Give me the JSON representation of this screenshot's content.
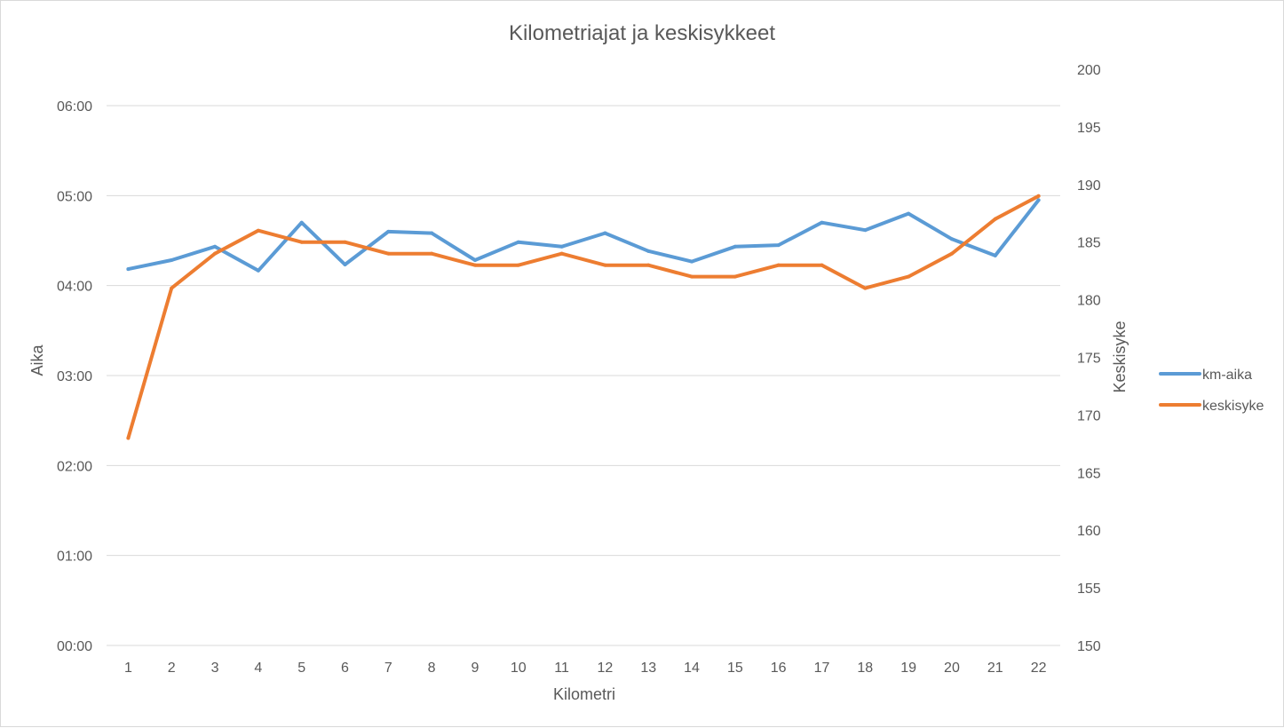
{
  "chart_data": {
    "type": "line",
    "title": "Kilometriajat ja keskisykkeet",
    "xlabel": "Kilometri",
    "ylabel": "Aika",
    "y2label": "Keskisyke",
    "categories": [
      "1",
      "2",
      "3",
      "4",
      "5",
      "6",
      "7",
      "8",
      "9",
      "10",
      "11",
      "12",
      "13",
      "14",
      "15",
      "16",
      "17",
      "18",
      "19",
      "20",
      "21",
      "22"
    ],
    "y_ticks": [
      "00:00",
      "01:00",
      "02:00",
      "03:00",
      "04:00",
      "05:00",
      "06:00"
    ],
    "y_range_seconds": [
      0,
      360
    ],
    "y2_ticks": [
      "150",
      "155",
      "160",
      "165",
      "170",
      "175",
      "180",
      "185",
      "190",
      "195",
      "200"
    ],
    "y2_range": [
      150,
      200
    ],
    "grid": true,
    "legend_position": "right",
    "series": [
      {
        "name": "km-aika",
        "axis": "left",
        "color": "#5b9bd5",
        "values_mmss": [
          "04:11",
          "04:17",
          "04:26",
          "04:10",
          "04:42",
          "04:14",
          "04:36",
          "04:35",
          "04:17",
          "04:29",
          "04:26",
          "04:35",
          "04:23",
          "04:16",
          "04:26",
          "04:27",
          "04:42",
          "04:37",
          "04:48",
          "04:31",
          "04:20",
          "04:57"
        ],
        "values_seconds": [
          251,
          257,
          266,
          250,
          282,
          254,
          276,
          275,
          257,
          269,
          266,
          275,
          263,
          256,
          266,
          267,
          282,
          277,
          288,
          271,
          260,
          297
        ]
      },
      {
        "name": "keskisyke",
        "axis": "right",
        "color": "#ed7d31",
        "values": [
          168,
          181,
          184,
          186,
          185,
          185,
          184,
          184,
          183,
          183,
          184,
          183,
          183,
          182,
          182,
          183,
          183,
          181,
          182,
          184,
          187,
          189
        ]
      }
    ]
  }
}
